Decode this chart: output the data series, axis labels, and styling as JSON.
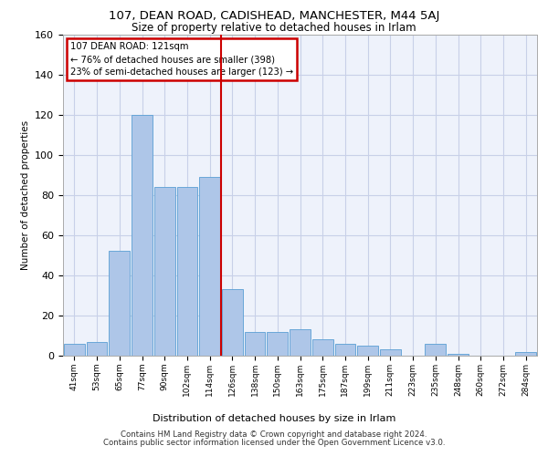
{
  "title1": "107, DEAN ROAD, CADISHEAD, MANCHESTER, M44 5AJ",
  "title2": "Size of property relative to detached houses in Irlam",
  "xlabel": "Distribution of detached houses by size in Irlam",
  "ylabel": "Number of detached properties",
  "footer1": "Contains HM Land Registry data © Crown copyright and database right 2024.",
  "footer2": "Contains public sector information licensed under the Open Government Licence v3.0.",
  "annotation_line1": "107 DEAN ROAD: 121sqm",
  "annotation_line2": "← 76% of detached houses are smaller (398)",
  "annotation_line3": "23% of semi-detached houses are larger (123) →",
  "bar_categories": [
    "41sqm",
    "53sqm",
    "65sqm",
    "77sqm",
    "90sqm",
    "102sqm",
    "114sqm",
    "126sqm",
    "138sqm",
    "150sqm",
    "163sqm",
    "175sqm",
    "187sqm",
    "199sqm",
    "211sqm",
    "223sqm",
    "235sqm",
    "248sqm",
    "260sqm",
    "272sqm",
    "284sqm"
  ],
  "bar_values": [
    6,
    7,
    52,
    120,
    84,
    84,
    89,
    33,
    12,
    12,
    13,
    8,
    6,
    5,
    3,
    0,
    6,
    1,
    0,
    0,
    2
  ],
  "bar_color": "#aec6e8",
  "bar_edge_color": "#5a9fd4",
  "ref_line_color": "#cc0000",
  "annotation_box_color": "#cc0000",
  "background_color": "#eef2fb",
  "grid_color": "#c8d0e8",
  "ylim": [
    0,
    160
  ],
  "yticks": [
    0,
    20,
    40,
    60,
    80,
    100,
    120,
    140,
    160
  ]
}
